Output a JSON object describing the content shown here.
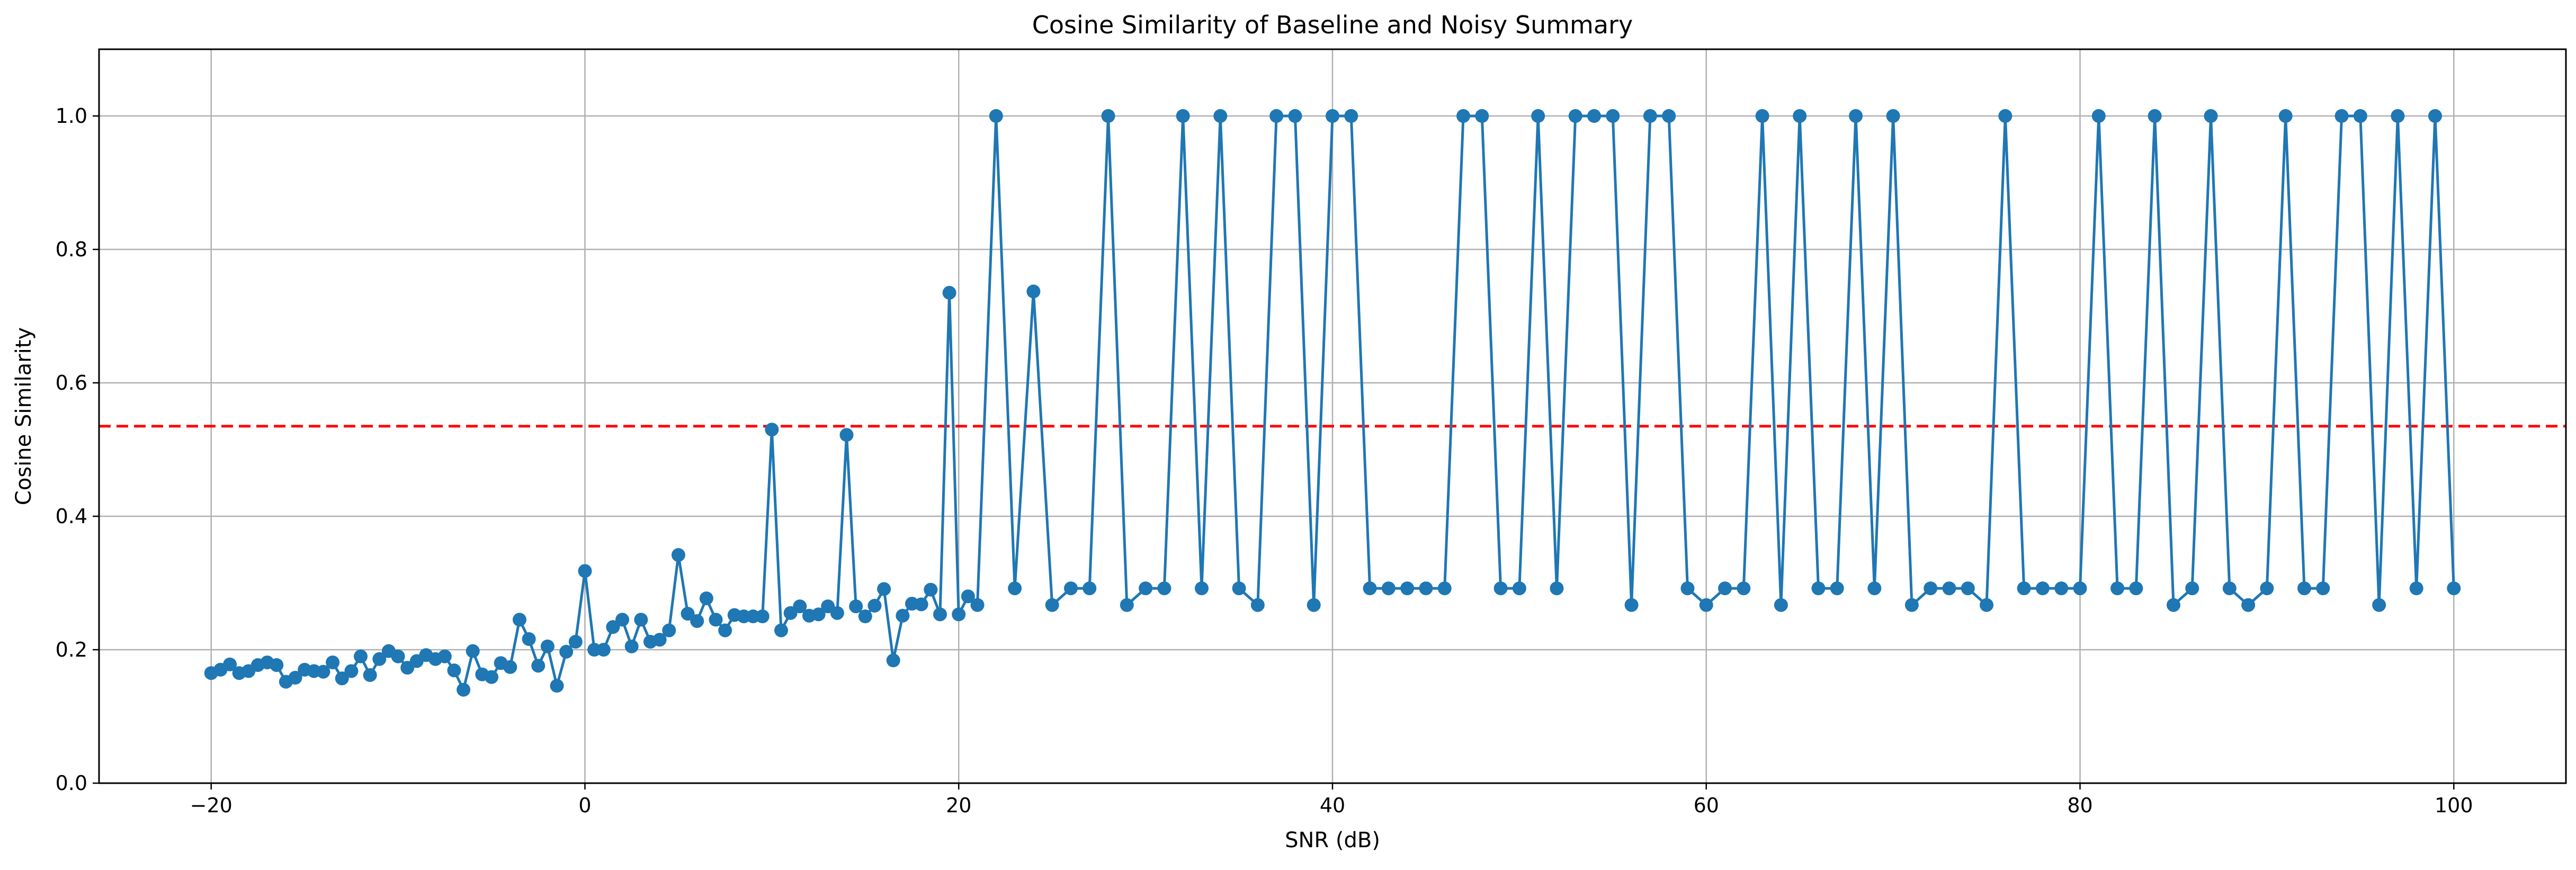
{
  "chart_data": {
    "type": "line",
    "title": "Cosine Similarity of Baseline and Noisy Summary",
    "xlabel": "SNR (dB)",
    "ylabel": "Cosine Similarity",
    "xlim": [
      -26,
      106
    ],
    "ylim": [
      0,
      1.1
    ],
    "xticks": [
      -20,
      0,
      20,
      40,
      60,
      80,
      100
    ],
    "yticks": [
      0.0,
      0.2,
      0.4,
      0.6,
      0.8,
      1.0
    ],
    "xtick_labels": [
      "−20",
      "0",
      "20",
      "40",
      "60",
      "80",
      "100"
    ],
    "ytick_labels": [
      "0.0",
      "0.2",
      "0.4",
      "0.6",
      "0.8",
      "1.0"
    ],
    "grid": true,
    "colors": {
      "series": "#1f77b4",
      "threshold": "#ff0000",
      "grid": "#b0b0b0"
    },
    "threshold": 0.535,
    "series": [
      {
        "x": [
          -20,
          -19.5,
          -19,
          -18.5,
          -18,
          -17.5,
          -17,
          -16.5,
          -16,
          -15.5,
          -15,
          -14.5,
          -14,
          -13.5,
          -13,
          -12.5,
          -12,
          -11.5,
          -11,
          -10.5,
          -10,
          -9.5,
          -9,
          -8.5,
          -8,
          -7.5,
          -7,
          -6.5,
          -6,
          -5.5,
          -5,
          -4.5,
          -4,
          -3.5,
          -3,
          -2.5,
          -2,
          -1.5,
          -1,
          -0.5,
          0,
          0.5,
          1,
          1.5,
          2,
          2.5,
          3,
          3.5,
          4,
          4.5,
          5,
          5.5,
          6,
          6.5,
          7,
          7.5,
          8,
          8.5,
          9,
          9.5,
          10,
          10.5,
          11,
          11.5,
          12,
          12.5,
          13,
          13.5,
          14,
          14.5,
          15,
          15.5,
          16,
          16.5,
          17,
          17.5,
          18,
          18.5,
          19,
          19.5,
          20,
          20.5,
          21,
          22,
          23,
          24,
          25,
          26,
          27,
          28,
          29,
          30,
          31,
          32,
          33,
          34,
          35,
          36,
          37,
          38,
          39,
          40,
          41,
          42,
          43,
          44,
          45,
          46,
          47,
          48,
          49,
          50,
          51,
          52,
          53,
          54,
          55,
          56,
          57,
          58,
          59,
          60,
          61,
          62,
          63,
          64,
          65,
          66,
          67,
          68,
          69,
          70,
          71,
          72,
          73,
          74,
          75,
          76,
          77,
          78,
          79,
          80,
          81,
          82,
          83,
          84,
          85,
          86,
          87,
          88,
          89,
          90,
          91,
          92,
          93,
          94,
          95,
          96,
          97,
          98,
          99,
          100
        ],
        "y": [
          0.165,
          0.17,
          0.178,
          0.165,
          0.168,
          0.177,
          0.181,
          0.177,
          0.152,
          0.158,
          0.17,
          0.168,
          0.167,
          0.181,
          0.157,
          0.168,
          0.19,
          0.162,
          0.186,
          0.198,
          0.19,
          0.173,
          0.183,
          0.192,
          0.186,
          0.19,
          0.169,
          0.14,
          0.198,
          0.163,
          0.159,
          0.18,
          0.174,
          0.245,
          0.216,
          0.176,
          0.205,
          0.146,
          0.197,
          0.212,
          0.318,
          0.2,
          0.2,
          0.234,
          0.245,
          0.205,
          0.245,
          0.212,
          0.215,
          0.229,
          0.342,
          0.254,
          0.243,
          0.277,
          0.245,
          0.229,
          0.252,
          0.25,
          0.25,
          0.25,
          0.53,
          0.229,
          0.255,
          0.265,
          0.251,
          0.253,
          0.265,
          0.255,
          0.522,
          0.265,
          0.25,
          0.266,
          0.291,
          0.184,
          0.251,
          0.269,
          0.268,
          0.29,
          0.253,
          0.735,
          0.253,
          0.28,
          0.267,
          1.0,
          0.292,
          0.737,
          0.267,
          0.292,
          0.292,
          1.0,
          0.267,
          0.292,
          0.292,
          1.0,
          0.292,
          1.0,
          0.292,
          0.267,
          1.0,
          1.0,
          0.267,
          1.0,
          1.0,
          0.292,
          0.292,
          0.292,
          0.292,
          0.292,
          1.0,
          1.0,
          0.292,
          0.292,
          1.0,
          0.292,
          1.0,
          1.0,
          1.0,
          0.267,
          1.0,
          1.0,
          0.292,
          0.267,
          0.292,
          0.292,
          1.0,
          0.267,
          1.0,
          0.292,
          0.292,
          1.0,
          0.292,
          1.0,
          0.267,
          0.292,
          0.292,
          0.292,
          0.267,
          1.0,
          0.292,
          0.292,
          0.292,
          0.292,
          1.0,
          0.292,
          0.292,
          1.0,
          0.267,
          0.292,
          1.0,
          0.292,
          0.267,
          0.292,
          1.0,
          0.292,
          0.292,
          1.0,
          1.0,
          0.267,
          1.0,
          0.292,
          1.0,
          0.292
        ]
      }
    ]
  }
}
